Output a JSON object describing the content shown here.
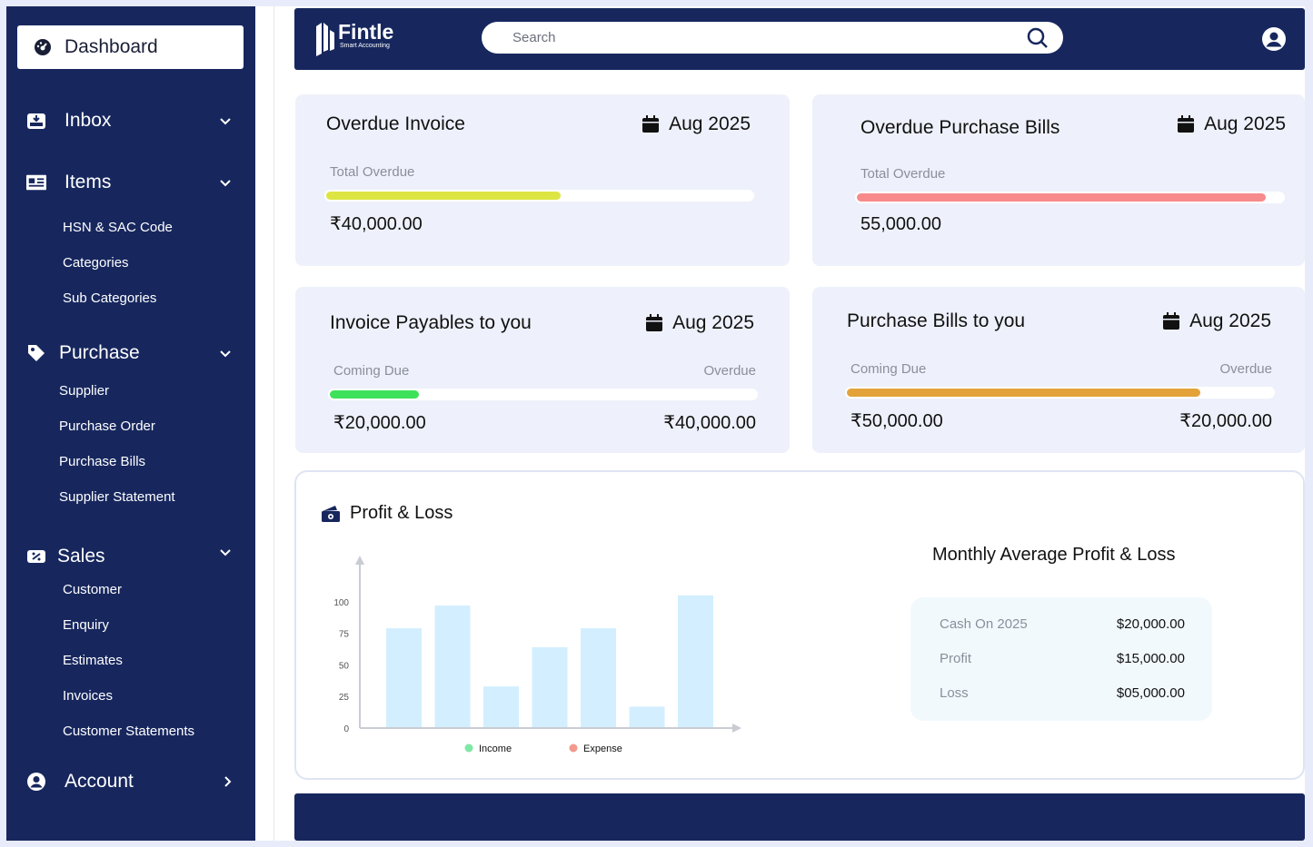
{
  "sidebar": {
    "dashboard": "Dashboard",
    "inbox": "Inbox",
    "items": "Items",
    "items_sub": [
      "HSN & SAC Code",
      "Categories",
      "Sub Categories"
    ],
    "purchase": "Purchase",
    "purchase_sub": [
      "Supplier",
      "Purchase Order",
      "Purchase Bills",
      "Supplier Statement"
    ],
    "sales": "Sales",
    "sales_sub": [
      "Customer",
      "Enquiry",
      "Estimates",
      "Invoices",
      "Customer Statements"
    ],
    "account": "Account"
  },
  "header": {
    "logo_name": "Fintle",
    "logo_tag": "Smart Accounting",
    "search_placeholder": "Search"
  },
  "cards": {
    "overdue_invoice": {
      "title": "Overdue Invoice",
      "date": "Aug 2025",
      "label": "Total Overdue",
      "amount": "₹40,000.00",
      "progress": 0.55,
      "color": "#dde543"
    },
    "overdue_bills": {
      "title": "Overdue Purchase Bills",
      "date": "Aug 2025",
      "label": "Total Overdue",
      "amount": "55,000.00",
      "progress": 0.96,
      "color": "#f78a8a"
    },
    "invoice_payables": {
      "title": "Invoice Payables to you",
      "date": "Aug 2025",
      "left_label": "Coming Due",
      "right_label": "Overdue",
      "left_amount": "₹20,000.00",
      "right_amount": "₹40,000.00",
      "progress": 0.21,
      "color": "#3ee15a"
    },
    "purchase_bills": {
      "title": "Purchase Bills to you",
      "date": "Aug 2025",
      "left_label": "Coming Due",
      "right_label": "Overdue",
      "left_amount": "₹50,000.00",
      "right_amount": "₹20,000.00",
      "progress": 0.83,
      "color": "#e3a33a"
    }
  },
  "profit_loss": {
    "title": "Profit & Loss",
    "avg_title": "Monthly Average Profit & Loss",
    "rows": [
      {
        "label": "Cash On 2025",
        "value": "$20,000.00"
      },
      {
        "label": "Profit",
        "value": "$15,000.00"
      },
      {
        "label": "Loss",
        "value": "$05,000.00"
      }
    ]
  },
  "chart_data": {
    "type": "bar",
    "values": [
      79,
      97,
      33,
      64,
      79,
      17,
      105
    ],
    "yticks": [
      "0",
      "25",
      "50",
      "75",
      "100"
    ],
    "ylim": [
      0,
      125
    ],
    "legend": [
      {
        "name": "Income",
        "color": "#7ee8a6"
      },
      {
        "name": "Expense",
        "color": "#f29a8e"
      }
    ],
    "bar_color": "#d3efff",
    "grid": false
  },
  "colors": {
    "navy": "#17275e",
    "card_bg": "#eef1fb"
  }
}
